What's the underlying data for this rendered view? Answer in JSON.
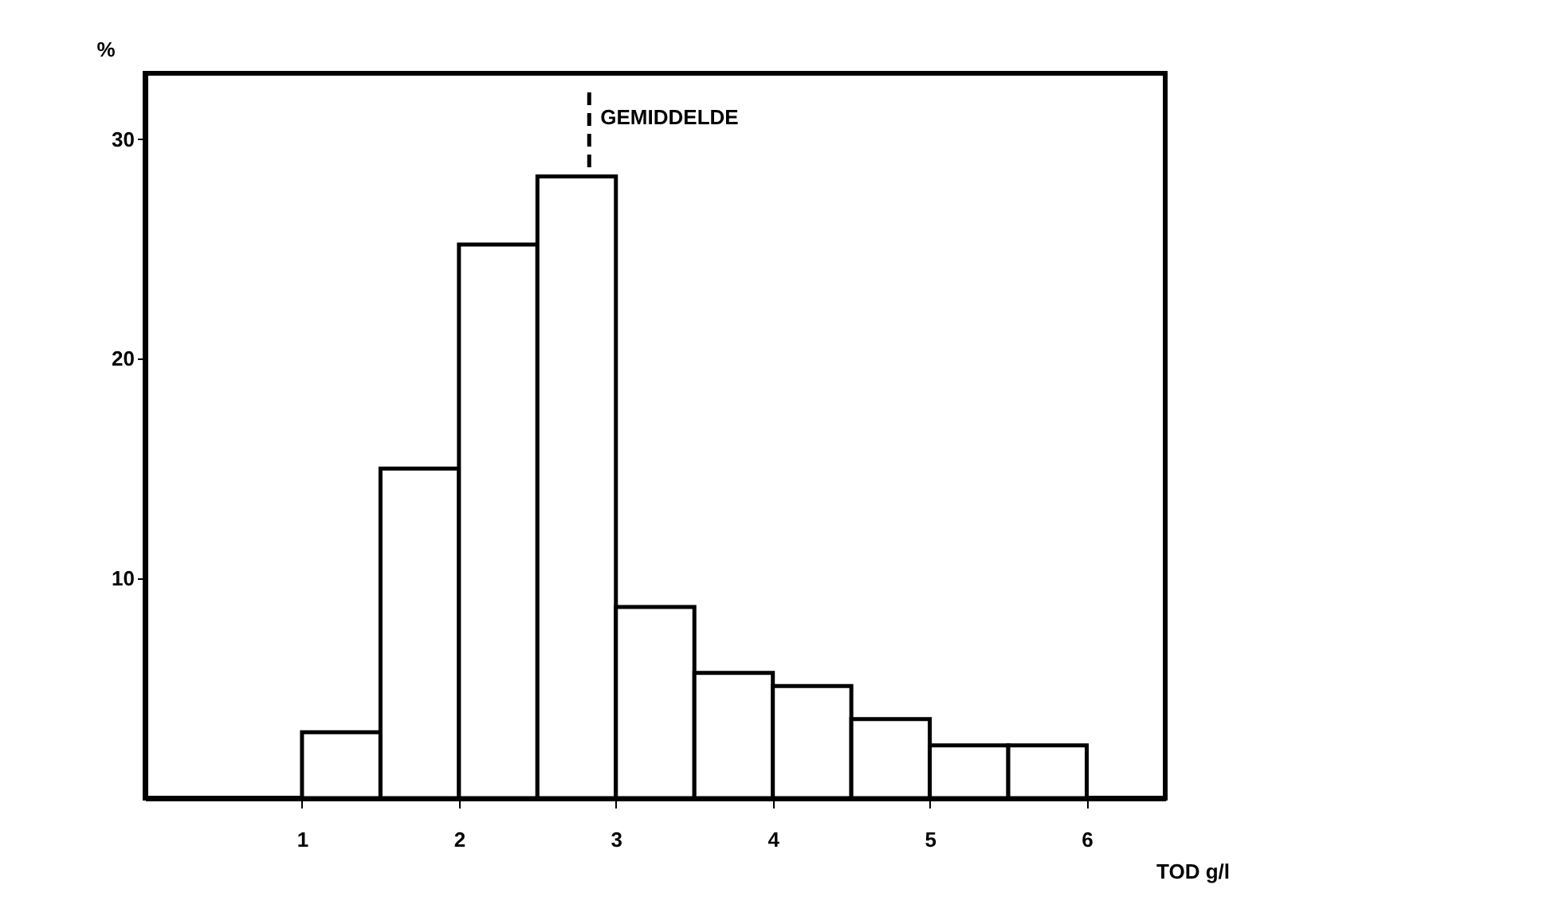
{
  "chart_data": {
    "type": "histogram",
    "bins": [
      1,
      1.5,
      2,
      2.5,
      3,
      3.5,
      4,
      4.5,
      5,
      5.5,
      6
    ],
    "values": [
      3.0,
      15.0,
      25.2,
      28.3,
      8.7,
      5.7,
      5.1,
      3.6,
      2.4,
      2.4
    ],
    "color": "#ffffff",
    "xlabel": "TOD g/l",
    "ylabel": "%",
    "xlim": [
      0,
      6.5
    ],
    "xticks": [
      1,
      2,
      3,
      4,
      5,
      6
    ],
    "ylim": [
      0,
      33
    ],
    "yticks": [
      10,
      20,
      30
    ],
    "grid": false,
    "ref_lines": [
      {
        "axis": "x",
        "value": 2.83,
        "label": "GEMIDDELDE",
        "line_style": "dashed"
      }
    ]
  }
}
